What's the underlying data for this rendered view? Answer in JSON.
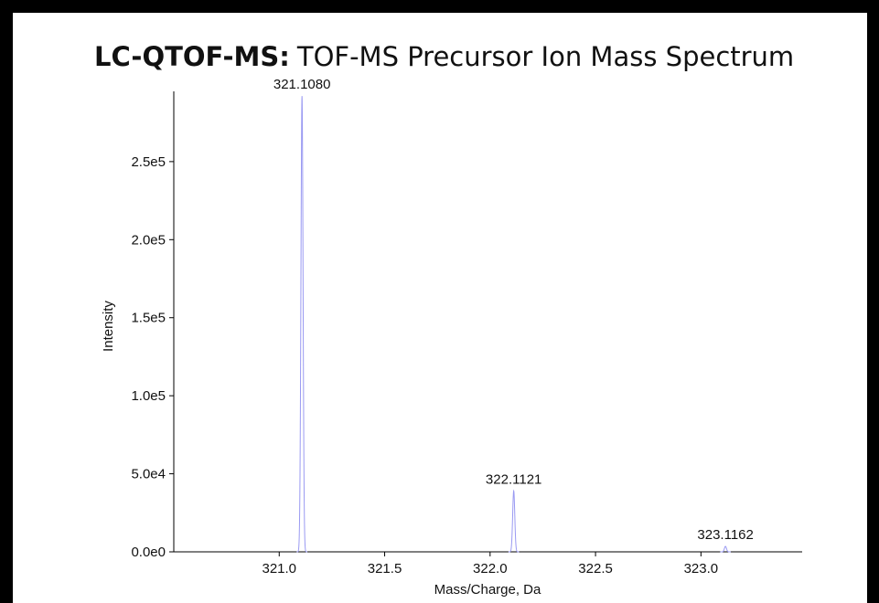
{
  "chart_data": {
    "type": "spectrum",
    "title_prefix": "LC-QTOF-MS:",
    "title": "TOF-MS Precursor Ion Mass Spectrum",
    "xlabel": "Mass/Charge, Da",
    "ylabel": "Intensity",
    "x": [
      321.108,
      322.1121,
      323.1162
    ],
    "x_labels": [
      "321.1080",
      "322.1121",
      "323.1162"
    ],
    "values": [
      292000,
      39000,
      3500
    ],
    "color": "#9a9af2",
    "xlim": [
      320.5,
      323.48
    ],
    "ylim": [
      0,
      295000
    ],
    "xticks": [
      {
        "value": 321,
        "label": "321.0"
      },
      321.5,
      {
        "value": 322,
        "label": "322.0"
      },
      322.5,
      {
        "value": 323,
        "label": "323.0"
      }
    ],
    "yticks": [
      {
        "value": 0,
        "label": "0.0e0"
      },
      {
        "value": 50000,
        "label": "5.0e4"
      },
      {
        "value": 100000,
        "label": "1.0e5"
      },
      {
        "value": 150000,
        "label": "1.5e5"
      },
      {
        "value": 200000,
        "label": "2.0e5"
      },
      {
        "value": 250000,
        "label": "2.5e5"
      }
    ],
    "grid": false
  }
}
